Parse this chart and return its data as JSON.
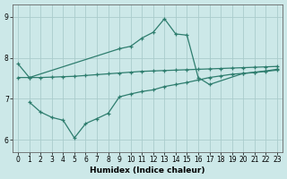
{
  "xlabel": "Humidex (Indice chaleur)",
  "bg_color": "#cce8e8",
  "line_color": "#2e7d6e",
  "grid_color": "#aacccc",
  "ylim": [
    5.7,
    9.3
  ],
  "xlim": [
    -0.5,
    23.5
  ],
  "yticks": [
    6,
    7,
    8,
    9
  ],
  "xticks": [
    0,
    1,
    2,
    3,
    4,
    5,
    6,
    7,
    8,
    9,
    10,
    11,
    12,
    13,
    14,
    15,
    16,
    17,
    18,
    19,
    20,
    21,
    22,
    23
  ],
  "main_x": [
    0,
    1,
    9,
    10,
    11,
    12,
    13,
    14,
    15,
    16,
    17,
    20,
    21,
    22,
    23
  ],
  "main_y": [
    7.85,
    7.52,
    8.22,
    8.28,
    8.48,
    8.62,
    8.95,
    8.58,
    8.55,
    7.52,
    7.35,
    7.62,
    7.65,
    7.68,
    7.72
  ],
  "mid_x": [
    0,
    1,
    2,
    3,
    4,
    5,
    6,
    7,
    8,
    9,
    10,
    11,
    12,
    13,
    14,
    15,
    16,
    17,
    18,
    19,
    20,
    21,
    22,
    23
  ],
  "mid_y": [
    7.52,
    7.52,
    7.52,
    7.53,
    7.54,
    7.55,
    7.57,
    7.59,
    7.61,
    7.63,
    7.65,
    7.67,
    7.68,
    7.69,
    7.7,
    7.71,
    7.72,
    7.73,
    7.74,
    7.75,
    7.76,
    7.77,
    7.78,
    7.79
  ],
  "bot_x": [
    1,
    2,
    3,
    4,
    5,
    6,
    7,
    8,
    9,
    10,
    11,
    12,
    13,
    14,
    15,
    16,
    17,
    18,
    19,
    20,
    21,
    22,
    23
  ],
  "bot_y": [
    6.92,
    6.68,
    6.55,
    6.48,
    6.05,
    6.4,
    6.52,
    6.65,
    7.05,
    7.12,
    7.18,
    7.22,
    7.3,
    7.35,
    7.4,
    7.46,
    7.52,
    7.56,
    7.6,
    7.62,
    7.64,
    7.67,
    7.7
  ]
}
